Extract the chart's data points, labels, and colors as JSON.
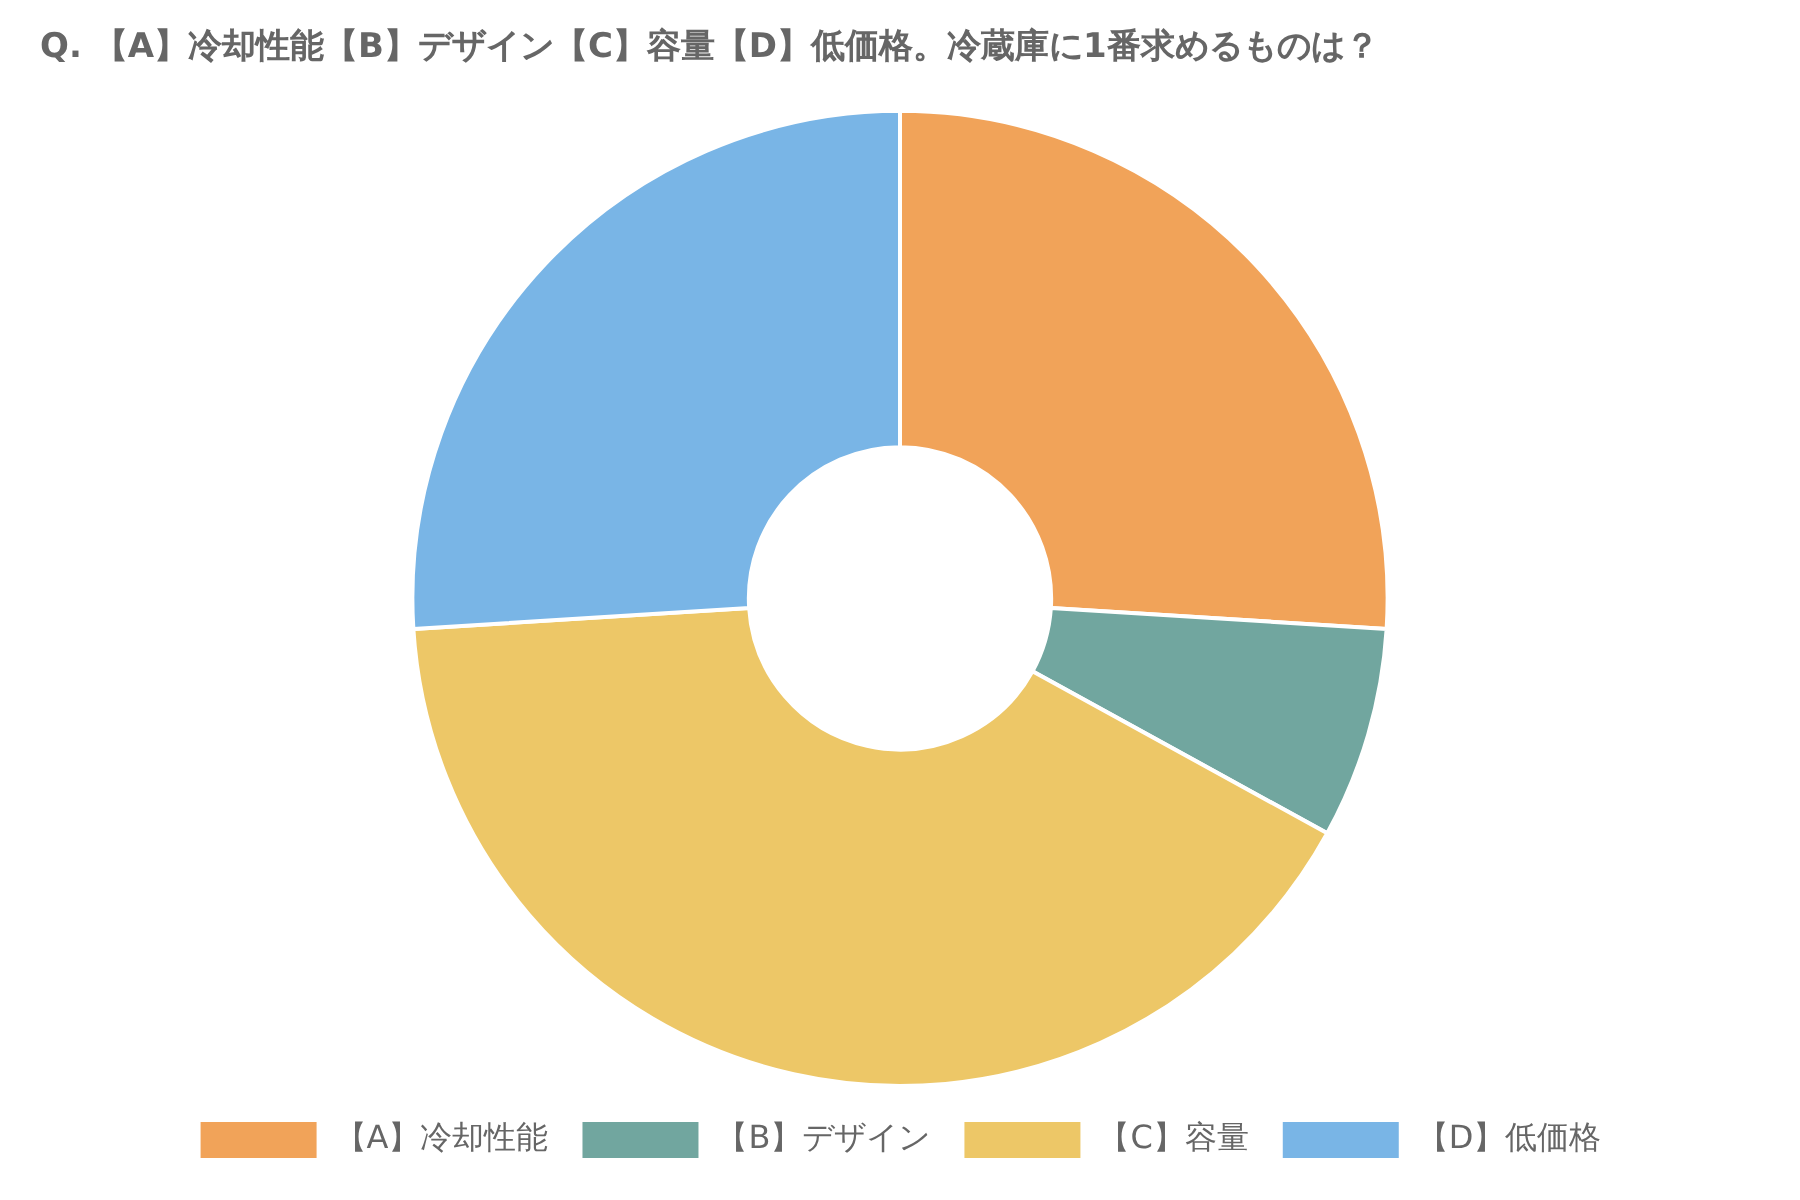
{
  "chart_data": {
    "type": "donut",
    "title": "Q. 【A】冷却性能【B】デザイン【C】容量【D】低価格。冷蔵庫に1番求めるものは？",
    "categories": [
      "【A】冷却性能",
      "【B】デザイン",
      "【C】容量",
      "【D】低価格"
    ],
    "values": [
      26,
      7,
      41,
      26
    ],
    "colors": [
      "#f1a359",
      "#71a69f",
      "#edc767",
      "#79b5e6"
    ],
    "legend": "bottom"
  }
}
